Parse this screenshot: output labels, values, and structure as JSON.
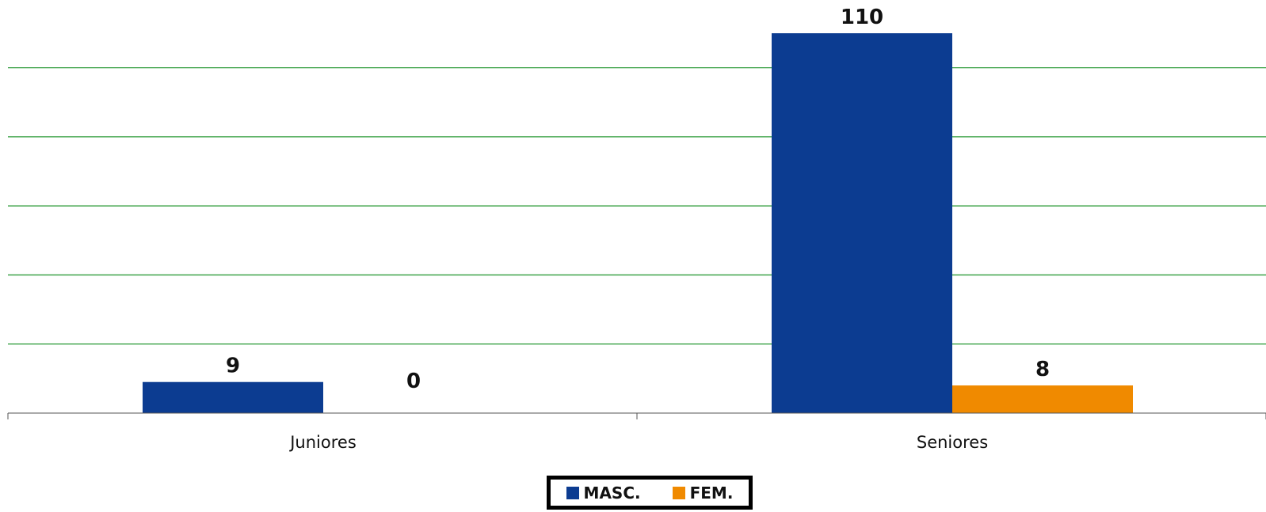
{
  "chart_data": {
    "type": "bar",
    "categories": [
      "Juniores",
      "Seniores"
    ],
    "series": [
      {
        "name": "MASC.",
        "values": [
          9,
          110
        ],
        "color": "#0c3c91"
      },
      {
        "name": "FEM.",
        "values": [
          0,
          8
        ],
        "color": "#f08a00"
      }
    ],
    "title": "",
    "xlabel": "",
    "ylabel": "",
    "ylim": [
      0,
      120
    ],
    "grid": true,
    "grid_color": "#2e9b3a",
    "legend_position": "bottom-center"
  }
}
